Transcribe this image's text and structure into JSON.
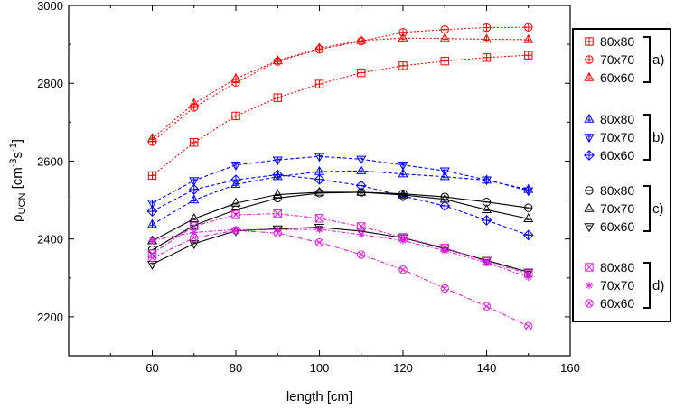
{
  "chart_data": {
    "type": "line",
    "title": "",
    "xlabel": "length [cm]",
    "ylabel_main": "ρ",
    "ylabel_sub": "UCN",
    "ylabel_unit_1": " [cm",
    "ylabel_sup_1": "-3",
    "ylabel_unit_2": "s",
    "ylabel_sup_2": "-1",
    "ylabel_unit_3": "]",
    "xlim": [
      40,
      160
    ],
    "ylim": [
      2100,
      3000
    ],
    "xticks": [
      60,
      80,
      100,
      120,
      140,
      160
    ],
    "yticks": [
      2200,
      2400,
      2600,
      2800,
      3000
    ],
    "grid": false,
    "legend_position": "right",
    "x": [
      60,
      70,
      80,
      90,
      100,
      110,
      120,
      130,
      140,
      150
    ],
    "groups": [
      {
        "label": "a)",
        "color": "#ff0000",
        "dash": "dotted",
        "series": [
          {
            "name": "80x80",
            "marker": "square-plus",
            "values": [
              2563,
              2648,
              2716,
              2763,
              2798,
              2827,
              2845,
              2857,
              2866,
              2872
            ]
          },
          {
            "name": "70x70",
            "marker": "circle-plus",
            "values": [
              2650,
              2738,
              2802,
              2856,
              2887,
              2908,
              2931,
              2938,
              2943,
              2944
            ]
          },
          {
            "name": "60x60",
            "marker": "triangle-up-plus",
            "values": [
              2658,
              2748,
              2812,
              2858,
              2890,
              2910,
              2916,
              2915,
              2913,
              2912
            ]
          }
        ]
      },
      {
        "label": "b)",
        "color": "#0000ff",
        "dash": "dashed",
        "series": [
          {
            "name": "80x80",
            "marker": "triangle-up-plus",
            "values": [
              2437,
              2500,
              2540,
              2560,
              2573,
              2575,
              2567,
              2560,
              2551,
              2527
            ]
          },
          {
            "name": "70x70",
            "marker": "triangle-down-plus",
            "values": [
              2492,
              2550,
              2590,
              2603,
              2612,
              2605,
              2590,
              2575,
              2552,
              2524
            ]
          },
          {
            "name": "60x60",
            "marker": "diamond-plus",
            "values": [
              2471,
              2527,
              2552,
              2565,
              2553,
              2537,
              2510,
              2485,
              2448,
              2410
            ]
          }
        ]
      },
      {
        "label": "c)",
        "color": "#000000",
        "dash": "solid",
        "series": [
          {
            "name": "80x80",
            "marker": "circle-line",
            "values": [
              2372,
              2435,
              2475,
              2505,
              2518,
              2520,
              2516,
              2508,
              2495,
              2480
            ]
          },
          {
            "name": "70x70",
            "marker": "triangle-up-line",
            "values": [
              2395,
              2452,
              2492,
              2514,
              2520,
              2520,
              2513,
              2502,
              2475,
              2452
            ]
          },
          {
            "name": "60x60",
            "marker": "triangle-down-line",
            "values": [
              2335,
              2388,
              2421,
              2426,
              2430,
              2420,
              2403,
              2375,
              2345,
              2315
            ]
          }
        ]
      },
      {
        "label": "d)",
        "color": "#e020e0",
        "dash": "dashdot",
        "series": [
          {
            "name": "80x80",
            "marker": "square-x",
            "values": [
              2362,
              2433,
              2462,
              2465,
              2453,
              2432,
              2404,
              2377,
              2342,
              2311
            ]
          },
          {
            "name": "70x70",
            "marker": "star",
            "values": [
              2396,
              2417,
              2424,
              2424,
              2425,
              2411,
              2396,
              2370,
              2339,
              2302
            ]
          },
          {
            "name": "60x60",
            "marker": "circle-x",
            "values": [
              2351,
              2403,
              2422,
              2415,
              2391,
              2360,
              2321,
              2273,
              2227,
              2176
            ]
          }
        ]
      }
    ]
  }
}
